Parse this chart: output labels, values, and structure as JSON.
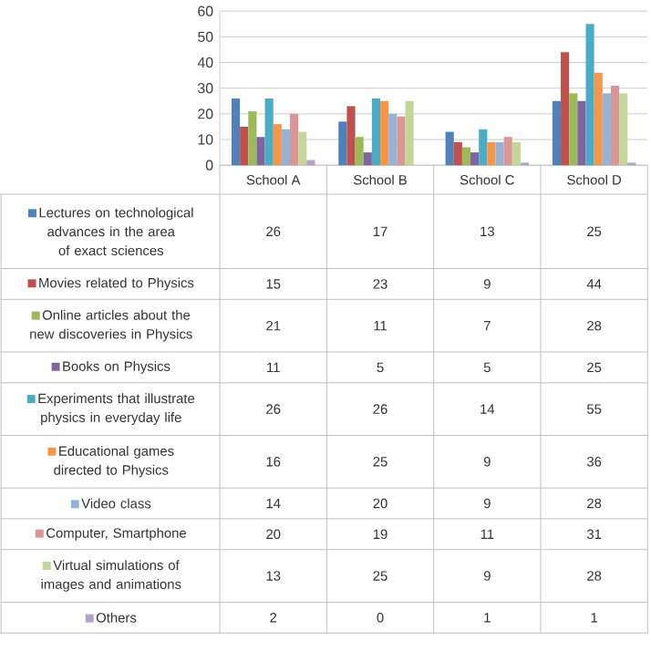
{
  "chart_data": {
    "type": "bar",
    "categories": [
      "School A",
      "School B",
      "School C",
      "School D"
    ],
    "series": [
      {
        "name": "Lectures on technological advances in the area of exact sciences",
        "color": "#4F81BD",
        "values": [
          26,
          17,
          13,
          25
        ]
      },
      {
        "name": "Movies related to Physics",
        "color": "#C0504D",
        "values": [
          15,
          23,
          9,
          44
        ]
      },
      {
        "name": "Online articles about the new discoveries in Physics",
        "color": "#9BBB59",
        "values": [
          21,
          11,
          7,
          28
        ]
      },
      {
        "name": "Books on Physics",
        "color": "#8064A2",
        "values": [
          11,
          5,
          5,
          25
        ]
      },
      {
        "name": "Experiments that illustrate physics in everyday life",
        "color": "#4BACC6",
        "values": [
          26,
          26,
          14,
          55
        ]
      },
      {
        "name": "Educational games directed to Physics",
        "color": "#F79646",
        "values": [
          16,
          25,
          9,
          36
        ]
      },
      {
        "name": "Video class",
        "color": "#95B3D7",
        "values": [
          14,
          20,
          9,
          28
        ]
      },
      {
        "name": "Computer, Smartphone",
        "color": "#D99694",
        "values": [
          20,
          19,
          11,
          31
        ]
      },
      {
        "name": "Virtual simulations of images and animations",
        "color": "#C3D69B",
        "values": [
          13,
          25,
          9,
          28
        ]
      },
      {
        "name": "Others",
        "color": "#B3A2C7",
        "values": [
          2,
          0,
          1,
          1
        ]
      }
    ],
    "ylim": [
      0,
      60
    ],
    "yticks": [
      0,
      10,
      20,
      30,
      40,
      50,
      60
    ],
    "grid": "y",
    "data_labels": true,
    "legend": "bottom"
  }
}
